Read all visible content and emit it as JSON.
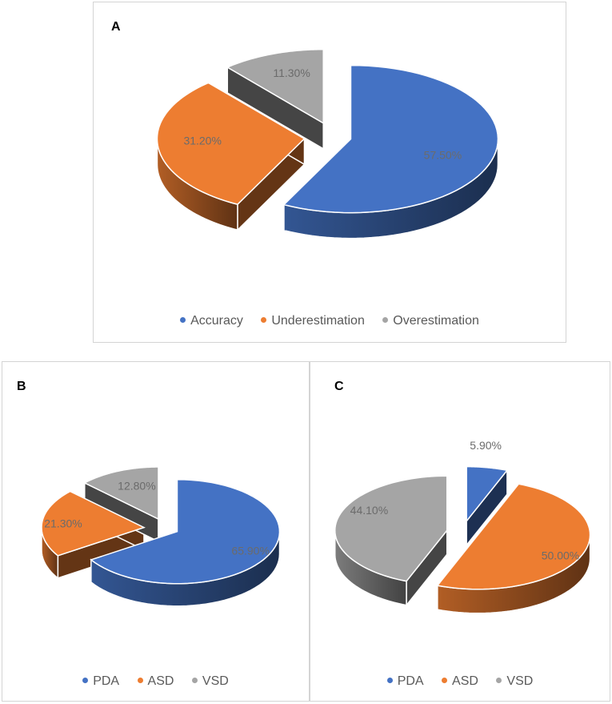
{
  "colors": {
    "blue": "#4472c4",
    "orange": "#ed7d31",
    "gray": "#a5a5a5"
  },
  "panels": [
    {
      "label": "A"
    },
    {
      "label": "B"
    },
    {
      "label": "C"
    }
  ],
  "chart_data": [
    {
      "type": "pie",
      "style": "3d-exploded",
      "title": "",
      "legend_position": "bottom",
      "slices": [
        {
          "name": "Accuracy",
          "value": 57.5,
          "label": "57.50%",
          "color": "#4472c4"
        },
        {
          "name": "Underestimation",
          "value": 31.2,
          "label": "31.20%",
          "color": "#ed7d31"
        },
        {
          "name": "Overestimation",
          "value": 11.3,
          "label": "11.30%",
          "color": "#a5a5a5"
        }
      ]
    },
    {
      "type": "pie",
      "style": "3d-exploded",
      "title": "",
      "legend_position": "bottom",
      "slices": [
        {
          "name": "PDA",
          "value": 65.9,
          "label": "65.90%",
          "color": "#4472c4"
        },
        {
          "name": "ASD",
          "value": 21.3,
          "label": "21.30%",
          "color": "#ed7d31"
        },
        {
          "name": "VSD",
          "value": 12.8,
          "label": "12.80%",
          "color": "#a5a5a5"
        }
      ]
    },
    {
      "type": "pie",
      "style": "3d-exploded",
      "title": "",
      "legend_position": "bottom",
      "slices": [
        {
          "name": "PDA",
          "value": 5.9,
          "label": "5.90%",
          "color": "#4472c4"
        },
        {
          "name": "ASD",
          "value": 50.0,
          "label": "50.00%",
          "color": "#ed7d31"
        },
        {
          "name": "VSD",
          "value": 44.1,
          "label": "44.10%",
          "color": "#a5a5a5"
        }
      ]
    }
  ]
}
